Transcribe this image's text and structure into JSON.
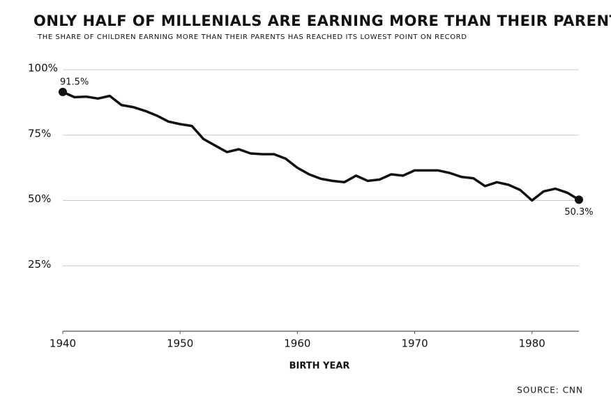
{
  "chart_data": {
    "type": "line",
    "title": "ONLY HALF OF MILLENIALS ARE EARNING MORE THAN THEIR PARENTS",
    "subtitle": "THE SHARE OF CHILDREN EARNING MORE THAN THEIR PARENTS HAS REACHED ITS LOWEST POINT ON RECORD",
    "x_label": "BIRTH YEAR",
    "source": "SOURCE: CNN",
    "x": [
      1940,
      1941,
      1942,
      1943,
      1944,
      1945,
      1946,
      1947,
      1948,
      1949,
      1950,
      1951,
      1952,
      1953,
      1954,
      1955,
      1956,
      1957,
      1958,
      1959,
      1960,
      1961,
      1962,
      1963,
      1964,
      1965,
      1966,
      1967,
      1968,
      1969,
      1970,
      1971,
      1972,
      1973,
      1974,
      1975,
      1976,
      1977,
      1978,
      1979,
      1980,
      1981,
      1982,
      1983,
      1984
    ],
    "values": [
      91.5,
      89.5,
      89.7,
      89,
      90,
      86.5,
      85.7,
      84.3,
      82.5,
      80.2,
      79.2,
      78.5,
      73.5,
      71,
      68.5,
      69.6,
      68,
      67.7,
      67.7,
      66,
      62.5,
      60,
      58.3,
      57.5,
      57,
      59.5,
      57.5,
      58,
      60,
      59.5,
      61.5,
      61.5,
      61.5,
      60.5,
      59,
      58.5,
      55.5,
      57,
      56,
      54,
      50,
      53.5,
      54.5,
      53,
      50.3
    ],
    "value_labels": [
      "91.5%",
      null,
      null,
      null,
      null,
      null,
      null,
      null,
      null,
      null,
      null,
      null,
      null,
      null,
      null,
      null,
      null,
      null,
      null,
      null,
      null,
      null,
      null,
      null,
      null,
      null,
      null,
      null,
      null,
      null,
      null,
      null,
      null,
      null,
      null,
      null,
      null,
      null,
      null,
      null,
      null,
      null,
      null,
      null,
      "50.3%"
    ],
    "color": "#111111",
    "xlim": [
      1940,
      1984
    ],
    "xticks": [
      1940,
      1950,
      1960,
      1970,
      1980
    ],
    "ylim": [
      0,
      100
    ],
    "yticks": [
      {
        "value": 25,
        "label": "25%"
      },
      {
        "value": 50,
        "label": "50%"
      },
      {
        "value": 75,
        "label": "75%"
      },
      {
        "value": 100,
        "label": "100%"
      }
    ],
    "grid": true
  }
}
